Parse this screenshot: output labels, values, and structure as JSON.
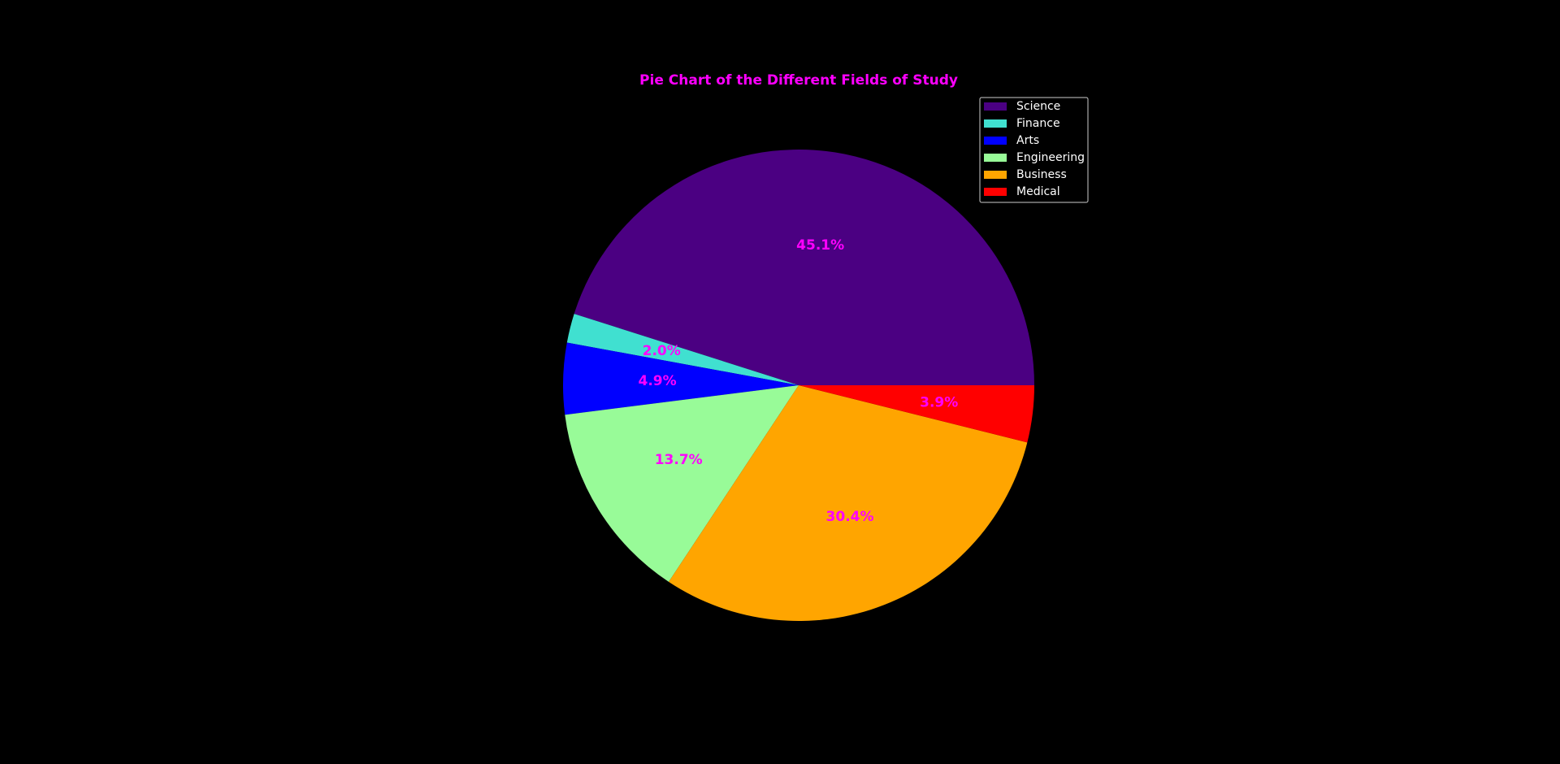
{
  "chart_data": {
    "type": "pie",
    "title": "Pie Chart of the Different Fields of Study",
    "title_color": "#ff00ff",
    "label_color": "#ff00ff",
    "background": "#000000",
    "start_angle_deg": 0,
    "direction": "counterclockwise",
    "legend_position": "top-right",
    "slices": [
      {
        "label": "Science",
        "value": 45.1,
        "display": "45.1%",
        "color": "#4b0082"
      },
      {
        "label": "Finance",
        "value": 2.0,
        "display": "2.0%",
        "color": "#40e0d0"
      },
      {
        "label": "Arts",
        "value": 4.9,
        "display": "4.9%",
        "color": "#0000ff"
      },
      {
        "label": "Engineering",
        "value": 13.7,
        "display": "13.7%",
        "color": "#98fb98"
      },
      {
        "label": "Business",
        "value": 30.4,
        "display": "30.4%",
        "color": "#ffa500"
      },
      {
        "label": "Medical",
        "value": 3.9,
        "display": "3.9%",
        "color": "#ff0000"
      }
    ]
  }
}
